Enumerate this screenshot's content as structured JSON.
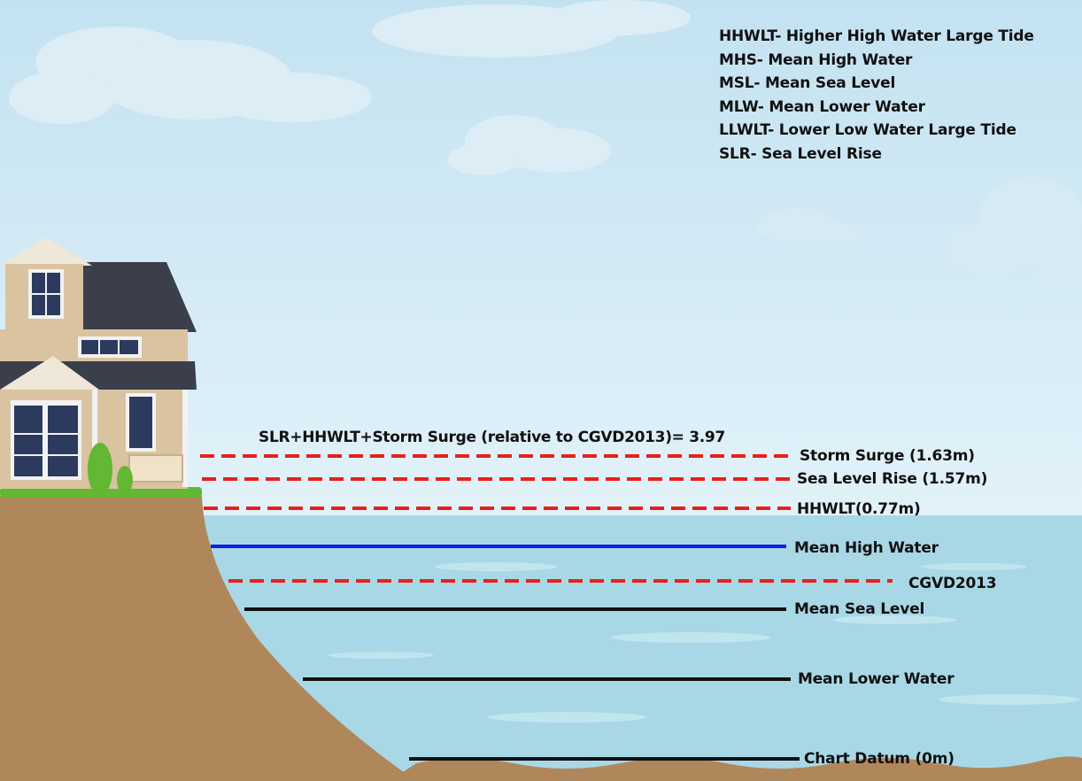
{
  "legend": {
    "items": [
      "HHWLT- Higher High Water Large Tide",
      "MHS- Mean High Water",
      "MSL- Mean Sea Level",
      "MLW- Mean Lower Water",
      "LLWLT- Lower Low Water Large Tide",
      "SLR- Sea Level Rise"
    ]
  },
  "headline": "SLR+HHWLT+Storm Surge (relative to CGVD2013)= 3.97",
  "levels": {
    "storm_surge": "Storm Surge (1.63m)",
    "sea_level_rise": "Sea Level Rise (1.57m)",
    "hhwlt": "HHWLT(0.77m)",
    "mean_high_water": "Mean High Water",
    "cgvd2013": "CGVD2013",
    "mean_sea_level": "Mean Sea Level",
    "mean_lower_water": "Mean Lower Water",
    "chart_datum": "Chart Datum (0m)"
  },
  "colors": {
    "sky_top": "#c3e2f1",
    "sky_bottom": "#e3f2f9",
    "water": "#a8d8e6",
    "ground": "#b0875b",
    "dashed_line": "#e8201c",
    "mean_high_water_line": "#1020e0",
    "solid_line": "#111111",
    "grass": "#62b733",
    "roof": "#3a3f4b",
    "siding": "#d9c3a1"
  }
}
